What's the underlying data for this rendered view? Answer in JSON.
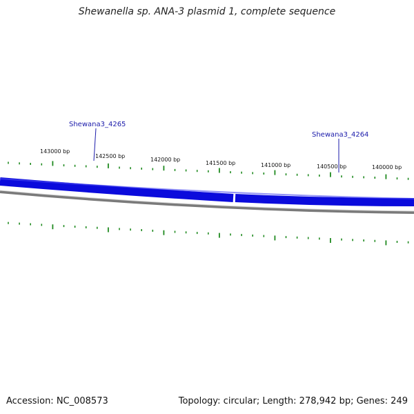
{
  "title": "Shewanella sp. ANA-3 plasmid 1, complete sequence",
  "footer": {
    "accession": "Accession: NC_008573",
    "summary": "Topology: circular; Length: 278,942 bp; Genes: 249"
  },
  "colors": {
    "gene_track": "#0b0bdc",
    "gene_label": "#1a1aaa",
    "backbone": "#7a7a7a",
    "ticks": "#1f8a1f"
  },
  "gene_labels": [
    {
      "id": "gene-label-4265",
      "text": "Shewana3_4265"
    },
    {
      "id": "gene-label-4264",
      "text": "Shewana3_4264"
    }
  ],
  "scale_labels": [
    "143000 bp",
    "142500 bp",
    "142000 bp",
    "141500 bp",
    "141000 bp",
    "140500 bp",
    "140000 bp"
  ]
}
